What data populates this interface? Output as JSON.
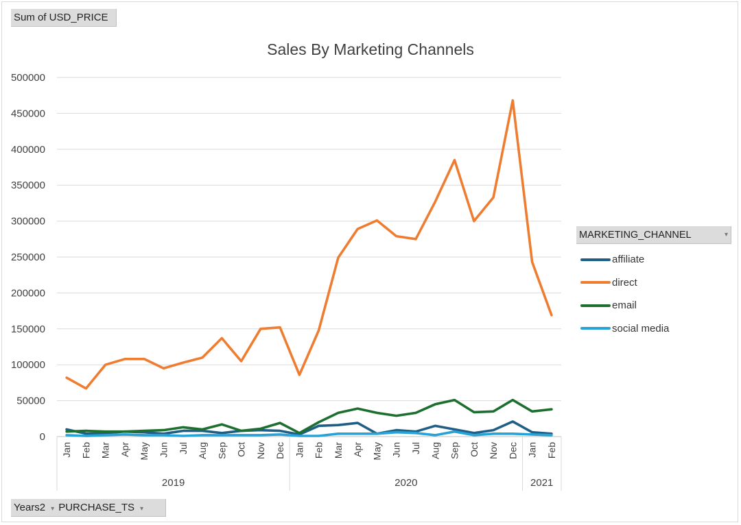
{
  "pivot": {
    "value_field": "Sum of USD_PRICE",
    "axis_fields": [
      "Years2",
      "PURCHASE_TS"
    ],
    "legend_field": "MARKETING_CHANNEL"
  },
  "chart_data": {
    "type": "line",
    "title": "Sales By Marketing Channels",
    "xlabel": "",
    "ylabel": "",
    "ylim": [
      0,
      500000
    ],
    "yticks": [
      0,
      50000,
      100000,
      150000,
      200000,
      250000,
      300000,
      350000,
      400000,
      450000,
      500000
    ],
    "grid": true,
    "legend_position": "right",
    "categories": [
      "Jan",
      "Feb",
      "Mar",
      "Apr",
      "May",
      "Jun",
      "Jul",
      "Aug",
      "Sep",
      "Oct",
      "Nov",
      "Dec",
      "Jan",
      "Feb",
      "Mar",
      "Apr",
      "May",
      "Jun",
      "Jul",
      "Aug",
      "Sep",
      "Oct",
      "Nov",
      "Dec",
      "Jan",
      "Feb"
    ],
    "groups": [
      {
        "label": "2019",
        "count": 12
      },
      {
        "label": "2020",
        "count": 12
      },
      {
        "label": "2021",
        "count": 2
      }
    ],
    "series": [
      {
        "name": "affiliate",
        "color": "#1f5f85",
        "values": [
          10000,
          4000,
          5000,
          7000,
          6000,
          4000,
          8000,
          8000,
          5000,
          8000,
          9000,
          8000,
          3000,
          15000,
          16000,
          19000,
          4000,
          9000,
          7000,
          15000,
          10000,
          5000,
          9000,
          21000,
          6000,
          4000
        ]
      },
      {
        "name": "direct",
        "color": "#ee7d31",
        "values": [
          82000,
          67000,
          100000,
          108000,
          108000,
          95000,
          103000,
          110000,
          137000,
          105000,
          150000,
          152000,
          86000,
          148000,
          249000,
          289000,
          301000,
          279000,
          275000,
          327000,
          385000,
          300000,
          333000,
          468000,
          243000,
          169000
        ]
      },
      {
        "name": "email",
        "color": "#1d6f2f",
        "values": [
          7000,
          8000,
          7000,
          7000,
          8000,
          9000,
          13000,
          10000,
          17000,
          8000,
          11000,
          19000,
          5000,
          20000,
          33000,
          39000,
          33000,
          29000,
          33000,
          45000,
          51000,
          34000,
          35000,
          51000,
          35000,
          38000
        ]
      },
      {
        "name": "social media",
        "color": "#28a3d8",
        "values": [
          2000,
          1000,
          2000,
          3000,
          2000,
          2000,
          1000,
          2000,
          2000,
          2000,
          2000,
          3000,
          1000,
          1000,
          4000,
          4000,
          4000,
          6000,
          5000,
          2000,
          7000,
          2000,
          4000,
          4000,
          3000,
          2000
        ]
      }
    ]
  }
}
